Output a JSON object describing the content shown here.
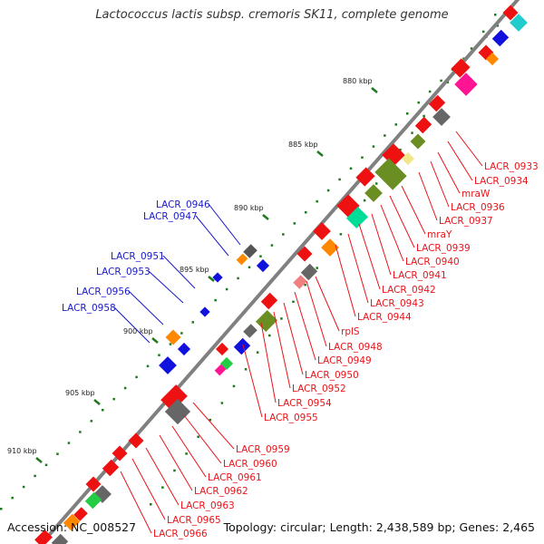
{
  "title": "Lactococcus lactis subsp. cremoris SK11, complete genome",
  "footer": {
    "accession": "Accession: NC_008527",
    "summary": "Topology: circular; Length: 2,438,589 bp; Genes: 2,465"
  },
  "colors": {
    "forward_label": "#e8141a",
    "reverse_label": "#1a1ac8",
    "backbone": "#808080",
    "tick": "#1e7a1e"
  },
  "kbp_markers": [
    "880 kbp",
    "885 kbp",
    "890 kbp",
    "895 kbp",
    "900 kbp",
    "905 kbp",
    "910 kbp"
  ],
  "right_labels": [
    "LACR_0933",
    "LACR_0934",
    "mraW",
    "LACR_0936",
    "LACR_0937",
    "mraY",
    "LACR_0939",
    "LACR_0940",
    "LACR_0941",
    "LACR_0942",
    "LACR_0943",
    "LACR_0944",
    "rplS",
    "LACR_0948",
    "LACR_0949",
    "LACR_0950",
    "LACR_0952",
    "LACR_0954",
    "LACR_0955",
    "LACR_0959",
    "LACR_0960",
    "LACR_0961",
    "LACR_0962",
    "LACR_0963",
    "LACR_0965",
    "LACR_0966"
  ],
  "left_labels": [
    "LACR_0946",
    "LACR_0947",
    "LACR_0951",
    "LACR_0953",
    "LACR_0956",
    "LACR_0958"
  ]
}
